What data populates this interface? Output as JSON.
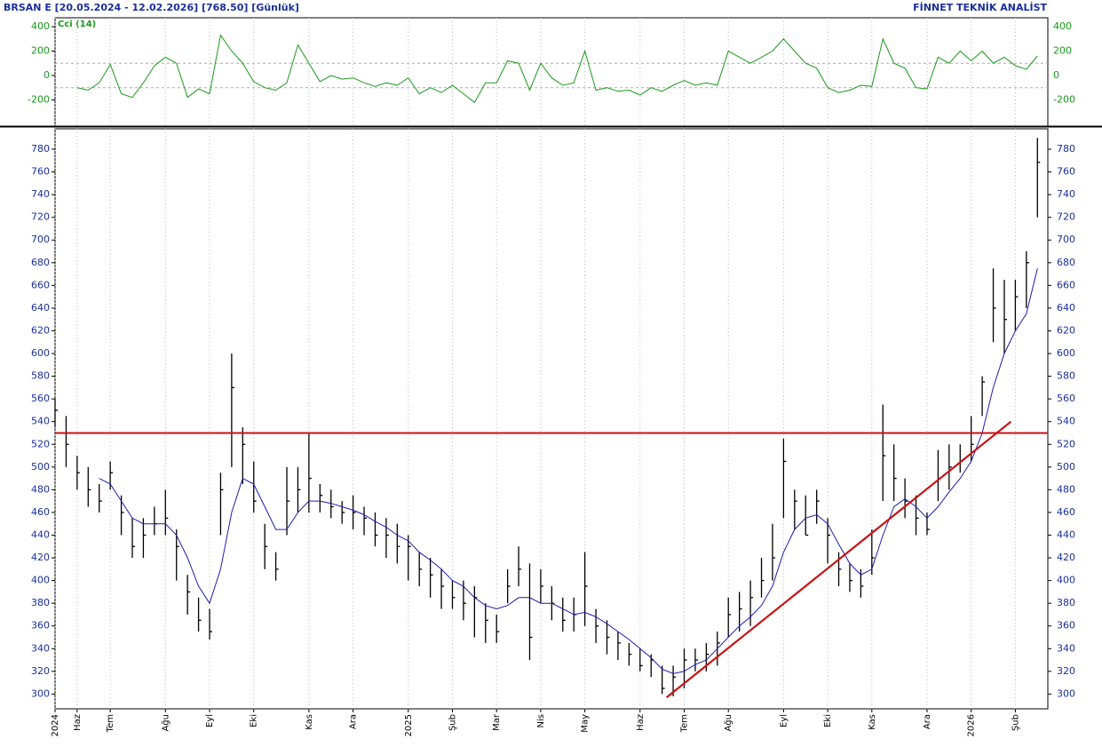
{
  "header": {
    "title": "BRSAN E  [20.05.2024 - 12.02.2026]  [768.50]  [Günlük]",
    "brand": "FİNNET TEKNİK ANALİST"
  },
  "chart_data": [
    {
      "type": "line",
      "label": "Cci (14)",
      "color": "#1a9a1a",
      "ylim": [
        -415,
        473
      ],
      "yticks": [
        -200,
        0,
        200,
        400
      ],
      "levels": [
        100,
        -100
      ],
      "values": [
        null,
        null,
        -100,
        -120,
        -60,
        90,
        -150,
        -180,
        -60,
        80,
        150,
        100,
        -180,
        -110,
        -150,
        330,
        200,
        100,
        -50,
        -100,
        -120,
        -60,
        250,
        100,
        -50,
        0,
        -30,
        -20,
        -60,
        -90,
        -60,
        -80,
        -20,
        -150,
        -100,
        -140,
        -80,
        -150,
        -220,
        -60,
        -60,
        120,
        100,
        -120,
        100,
        -20,
        -80,
        -60,
        200,
        -120,
        -100,
        -130,
        -120,
        -160,
        -100,
        -130,
        -80,
        -40,
        -80,
        -60,
        -80,
        200,
        150,
        100,
        150,
        200,
        300,
        200,
        100,
        60,
        -100,
        -140,
        -120,
        -80,
        -90,
        300,
        100,
        60,
        -100,
        -110,
        150,
        100,
        200,
        120,
        200,
        100,
        150,
        80,
        50,
        160
      ]
    },
    {
      "type": "ohlc",
      "color": "#000000",
      "ylim": [
        287,
        798
      ],
      "yticks": [
        300,
        320,
        340,
        360,
        380,
        400,
        420,
        440,
        460,
        480,
        500,
        520,
        540,
        560,
        580,
        600,
        620,
        640,
        660,
        680,
        700,
        720,
        740,
        760,
        780
      ],
      "categories": [
        "2024",
        null,
        "Haz",
        null,
        null,
        "Tem",
        null,
        null,
        null,
        null,
        "Ağu",
        null,
        null,
        null,
        "Eyl",
        null,
        null,
        null,
        "Eki",
        null,
        null,
        null,
        null,
        "Kas",
        null,
        null,
        null,
        "Ara",
        null,
        null,
        null,
        null,
        "2025",
        null,
        null,
        null,
        "Şub",
        null,
        null,
        null,
        "Mar",
        null,
        null,
        null,
        "Nis",
        null,
        null,
        null,
        "May",
        null,
        null,
        null,
        null,
        "Haz",
        null,
        null,
        null,
        "Tem",
        null,
        null,
        null,
        "Ağu",
        null,
        null,
        null,
        null,
        "Eyl",
        null,
        null,
        null,
        "Eki",
        null,
        null,
        null,
        "Kas",
        null,
        null,
        null,
        null,
        "Ara",
        null,
        null,
        null,
        "2026",
        null,
        null,
        null,
        "Şub",
        null,
        null
      ],
      "high": [
        560,
        545,
        510,
        500,
        485,
        505,
        475,
        455,
        455,
        465,
        480,
        445,
        405,
        385,
        375,
        495,
        600,
        535,
        505,
        450,
        425,
        500,
        500,
        530,
        485,
        480,
        470,
        475,
        465,
        460,
        455,
        450,
        440,
        425,
        420,
        410,
        400,
        400,
        395,
        380,
        370,
        410,
        430,
        415,
        410,
        395,
        385,
        385,
        425,
        375,
        365,
        355,
        345,
        340,
        335,
        325,
        325,
        340,
        340,
        345,
        355,
        385,
        390,
        400,
        420,
        450,
        525,
        480,
        475,
        480,
        455,
        425,
        415,
        410,
        445,
        555,
        520,
        490,
        475,
        460,
        515,
        520,
        520,
        545,
        580,
        675,
        665,
        665,
        690,
        790
      ],
      "low": [
        535,
        500,
        480,
        465,
        460,
        480,
        440,
        420,
        420,
        440,
        440,
        400,
        370,
        355,
        348,
        440,
        500,
        485,
        460,
        410,
        400,
        440,
        460,
        460,
        460,
        455,
        450,
        445,
        440,
        430,
        420,
        415,
        400,
        395,
        385,
        375,
        375,
        365,
        350,
        345,
        345,
        380,
        395,
        330,
        380,
        365,
        355,
        355,
        360,
        345,
        335,
        330,
        325,
        320,
        315,
        300,
        298,
        305,
        320,
        320,
        325,
        350,
        355,
        360,
        385,
        400,
        455,
        445,
        440,
        450,
        415,
        395,
        390,
        385,
        405,
        470,
        470,
        455,
        440,
        440,
        470,
        480,
        495,
        505,
        545,
        610,
        600,
        620,
        640,
        720
      ],
      "close": [
        550,
        520,
        495,
        480,
        470,
        495,
        460,
        430,
        440,
        450,
        455,
        430,
        390,
        365,
        355,
        480,
        570,
        520,
        470,
        430,
        410,
        470,
        480,
        490,
        475,
        465,
        460,
        460,
        455,
        440,
        440,
        430,
        430,
        410,
        405,
        395,
        385,
        380,
        385,
        365,
        355,
        395,
        410,
        350,
        395,
        380,
        365,
        370,
        395,
        360,
        350,
        345,
        335,
        325,
        330,
        305,
        315,
        330,
        330,
        335,
        345,
        370,
        375,
        385,
        400,
        420,
        505,
        470,
        440,
        470,
        440,
        410,
        400,
        395,
        420,
        510,
        490,
        470,
        455,
        445,
        490,
        500,
        505,
        520,
        575,
        640,
        630,
        650,
        680,
        768.5
      ],
      "ma": {
        "color": "#1c1cb4",
        "values": [
          null,
          null,
          null,
          null,
          490,
          485,
          470,
          455,
          450,
          450,
          450,
          440,
          420,
          395,
          380,
          410,
          460,
          490,
          485,
          465,
          445,
          445,
          460,
          470,
          470,
          468,
          465,
          462,
          458,
          452,
          447,
          440,
          435,
          425,
          418,
          410,
          400,
          395,
          385,
          378,
          375,
          378,
          385,
          385,
          380,
          380,
          375,
          370,
          372,
          368,
          362,
          355,
          348,
          340,
          332,
          322,
          318,
          320,
          326,
          330,
          340,
          350,
          360,
          368,
          378,
          395,
          425,
          445,
          455,
          458,
          450,
          432,
          415,
          405,
          410,
          440,
          465,
          472,
          465,
          455,
          465,
          478,
          490,
          505,
          530,
          570,
          600,
          620,
          635,
          675
        ]
      },
      "hline": {
        "value": 530,
        "color": "#cc1111"
      },
      "trendline": {
        "values": [
          297,
          540
        ],
        "color": "#cc1111"
      }
    }
  ]
}
